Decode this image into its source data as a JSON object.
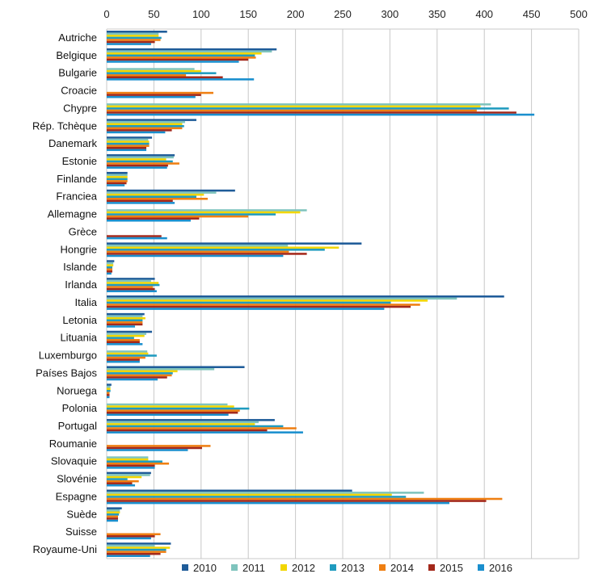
{
  "chart_data": {
    "type": "bar",
    "orientation": "horizontal",
    "title": "",
    "xlabel": "",
    "ylabel": "",
    "xlim": [
      0,
      500
    ],
    "xticks": [
      0,
      50,
      100,
      150,
      200,
      250,
      300,
      350,
      400,
      450,
      500
    ],
    "grid": true,
    "legend_position": "bottom",
    "categories": [
      "Autriche",
      "Belgique",
      "Bulgarie",
      "Croacie",
      "Chypre",
      "Rép. Tchèque",
      "Danemark",
      "Estonie",
      "Finlande",
      "Franciea",
      "Allemagne",
      "Grèce",
      "Hongrie",
      "Islande",
      "Irlanda",
      "Italia",
      "Letonia",
      "Lituania",
      "Luxemburgo",
      "Países Bajos",
      "Noruega",
      "Polonia",
      "Portugal",
      "Roumanie",
      "Slovaquie",
      "Slovénie",
      "Espagne",
      "Suède",
      "Suisse",
      "Royaume-Uni"
    ],
    "series": [
      {
        "name": "2010",
        "color": "#1f5c99",
        "values": [
          64,
          180,
          null,
          null,
          null,
          95,
          48,
          72,
          22,
          136,
          null,
          null,
          270,
          8,
          51,
          421,
          40,
          48,
          null,
          146,
          5,
          null,
          178,
          null,
          null,
          47,
          260,
          16,
          null,
          68
        ]
      },
      {
        "name": "2011",
        "color": "#7fc4bd",
        "values": [
          55,
          175,
          93,
          null,
          407,
          83,
          44,
          71,
          22,
          116,
          212,
          null,
          192,
          7,
          47,
          371,
          38,
          42,
          43,
          114,
          4,
          128,
          161,
          null,
          44,
          46,
          336,
          14,
          null,
          51
        ]
      },
      {
        "name": "2012",
        "color": "#f2d600",
        "values": [
          55,
          164,
          100,
          null,
          396,
          80,
          45,
          63,
          22,
          103,
          205,
          null,
          246,
          7,
          55,
          340,
          41,
          40,
          44,
          75,
          4,
          135,
          157,
          null,
          44,
          37,
          302,
          14,
          null,
          67
        ]
      },
      {
        "name": "2013",
        "color": "#1f9bbf",
        "values": [
          58,
          157,
          116,
          null,
          426,
          82,
          45,
          70,
          22,
          95,
          179,
          null,
          231,
          6,
          56,
          301,
          38,
          29,
          53,
          70,
          4,
          151,
          187,
          null,
          59,
          22,
          317,
          13,
          null,
          63
        ]
      },
      {
        "name": "2014",
        "color": "#ef7f12",
        "values": [
          57,
          158,
          84,
          113,
          392,
          80,
          45,
          77,
          22,
          107,
          150,
          null,
          193,
          6,
          49,
          332,
          38,
          35,
          41,
          69,
          3,
          141,
          201,
          110,
          66,
          34,
          419,
          12,
          57,
          63
        ]
      },
      {
        "name": "2015",
        "color": "#a3281b",
        "values": [
          51,
          150,
          123,
          100,
          434,
          69,
          42,
          65,
          21,
          70,
          98,
          58,
          212,
          6,
          51,
          322,
          38,
          35,
          35,
          64,
          3,
          139,
          170,
          101,
          51,
          27,
          402,
          12,
          51,
          57
        ]
      },
      {
        "name": "2016",
        "color": "#1a8fce",
        "values": [
          47,
          140,
          156,
          94,
          453,
          62,
          42,
          64,
          19,
          72,
          89,
          64,
          187,
          5,
          53,
          294,
          30,
          38,
          35,
          54,
          3,
          129,
          208,
          86,
          51,
          30,
          363,
          12,
          47,
          46
        ]
      }
    ]
  }
}
